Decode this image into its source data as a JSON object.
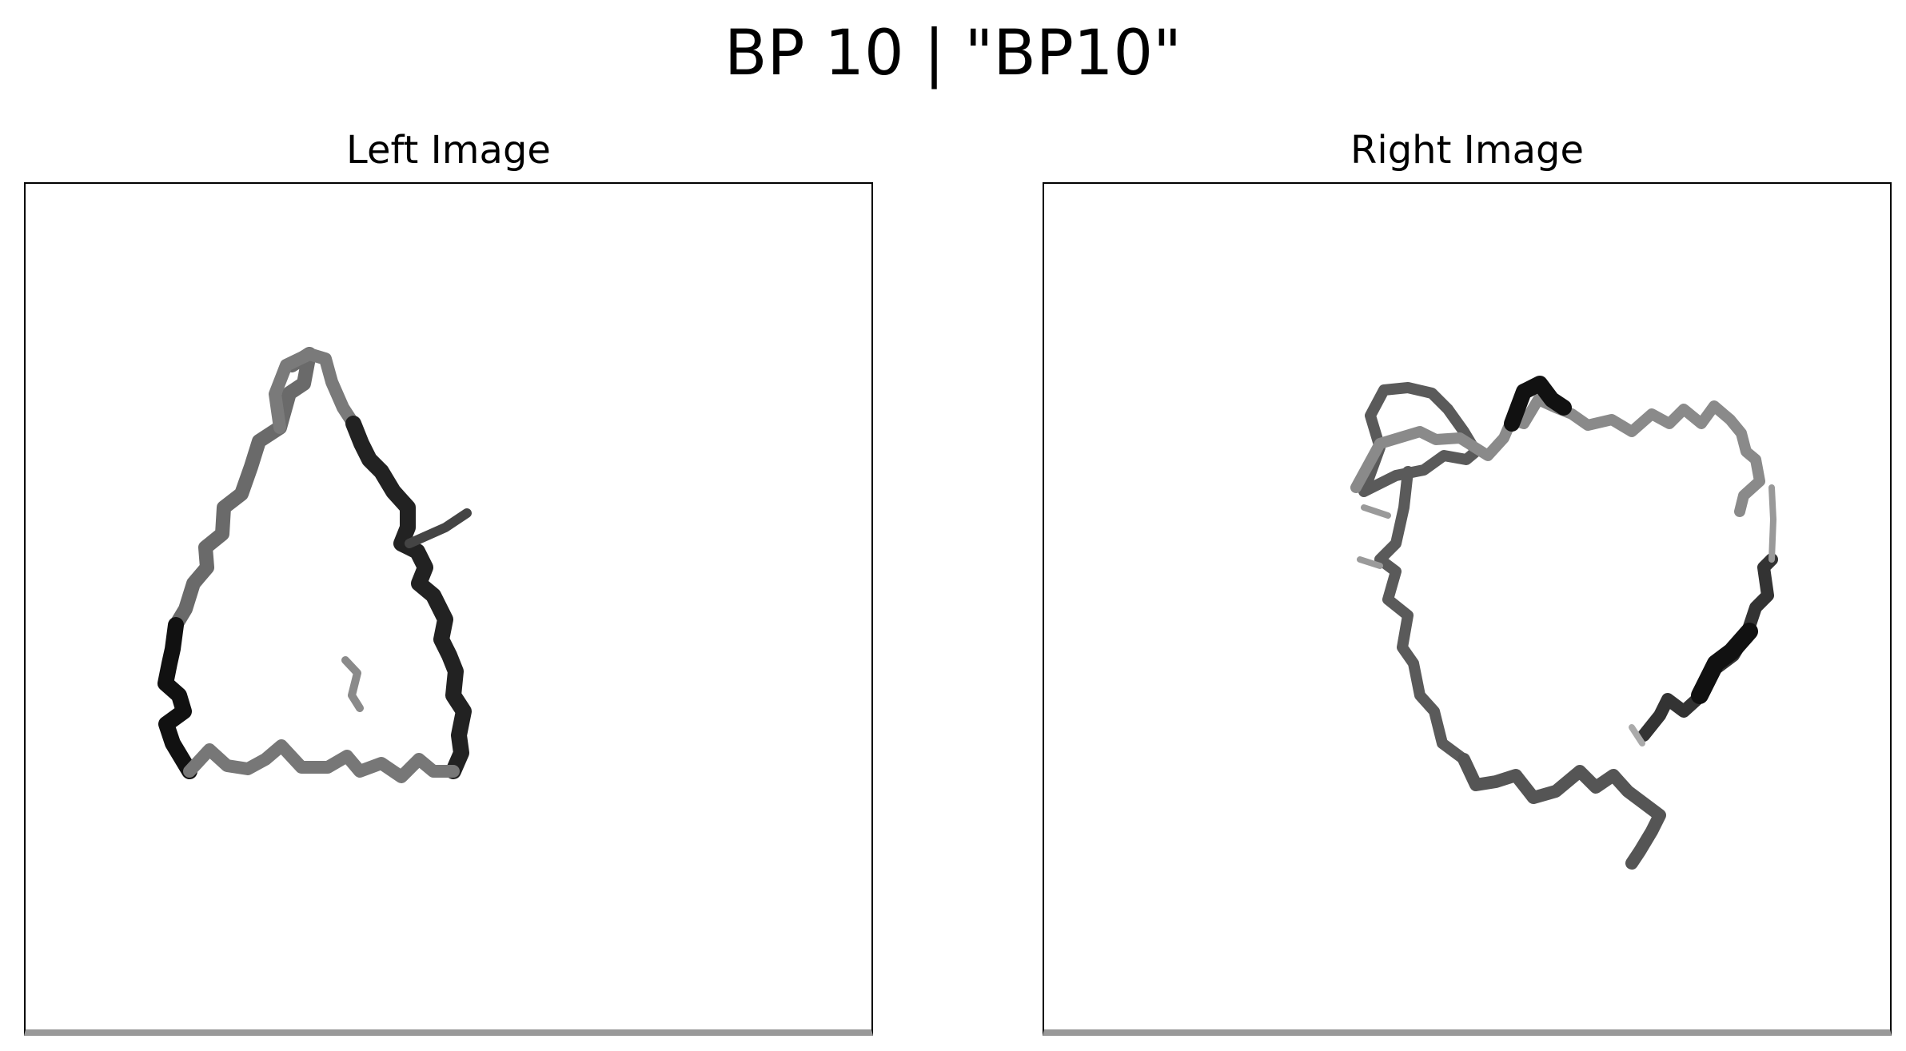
{
  "figure": {
    "title": "BP 10 | \"BP10\""
  },
  "panels": {
    "left": {
      "title": "Left Image",
      "content": "wavy-triangle"
    },
    "right": {
      "title": "Right Image",
      "content": "wavy-irregular-loop"
    }
  },
  "colors": {
    "background": "#ffffff",
    "frame": "#000000",
    "stroke_dark": "#111111",
    "stroke_mid": "#555555",
    "stroke_light": "#8a8a8a"
  }
}
